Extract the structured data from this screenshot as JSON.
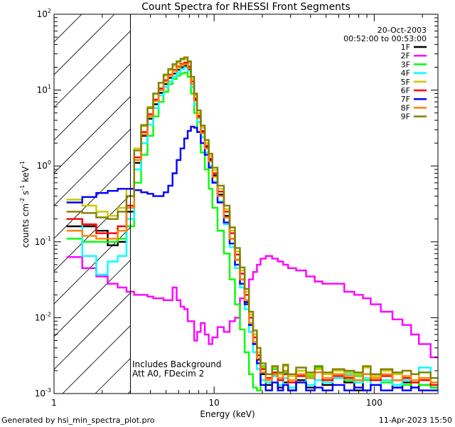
{
  "chart_data": {
    "type": "line",
    "title": "Count Spectra for RHESSI Front Segments",
    "xlabel": "Energy (keV)",
    "ylabel_parts": [
      "counts cm",
      "-2",
      " s",
      "-1",
      " keV",
      "-1"
    ],
    "x_scale": "log",
    "y_scale": "log",
    "xlim": [
      1,
      250
    ],
    "ylim": [
      0.001,
      100
    ],
    "x_ticks": [
      {
        "v": 1,
        "label": "1"
      },
      {
        "v": 10,
        "label": "10"
      },
      {
        "v": 100,
        "label": "100"
      }
    ],
    "y_ticks": [
      {
        "v": 0.001,
        "m": "10",
        "e": "-3"
      },
      {
        "v": 0.01,
        "m": "10",
        "e": "-2"
      },
      {
        "v": 0.1,
        "m": "10",
        "e": "-1"
      },
      {
        "v": 1,
        "m": "10",
        "e": "0"
      },
      {
        "v": 10,
        "m": "10",
        "e": "1"
      },
      {
        "v": 100,
        "m": "10",
        "e": "2"
      }
    ],
    "hatched_region_keV": [
      1,
      3
    ],
    "date": "20-Oct-2003",
    "time_range": "00:52:00 to 00:53:00",
    "annotations": [
      "Includes Background",
      "Att A0, FDecim 2"
    ],
    "energy_bins_keV": [
      1.33,
      1.67,
      2.0,
      2.33,
      2.67,
      3.0,
      3.33,
      3.67,
      4.0,
      4.33,
      4.67,
      5.0,
      5.33,
      5.67,
      6.0,
      6.33,
      6.67,
      7.0,
      7.33,
      7.67,
      8.0,
      8.5,
      9.0,
      9.5,
      10,
      11,
      12,
      13,
      14,
      15,
      16,
      17,
      18,
      19,
      20,
      22,
      24,
      26,
      28,
      30,
      35,
      40,
      45,
      50,
      60,
      70,
      80,
      90,
      100,
      120,
      140,
      160,
      180,
      200,
      250
    ],
    "series": [
      {
        "name": "1F",
        "color": "#000000",
        "values": [
          0.16,
          0.16,
          0.14,
          0.09,
          0.1,
          0.25,
          1.1,
          2.5,
          4.2,
          6.5,
          9.2,
          12,
          14.5,
          16.5,
          18.5,
          20,
          21,
          19,
          12,
          7.5,
          4.5,
          2.8,
          1.8,
          1.2,
          0.75,
          0.42,
          0.22,
          0.11,
          0.058,
          0.032,
          0.016,
          0.008,
          0.0045,
          0.0028,
          0.0018,
          0.0013,
          0.0017,
          0.0012,
          0.0014,
          0.0011,
          0.0015,
          0.0012,
          0.0019,
          0.0013,
          0.0016,
          0.0014,
          0.0011,
          0.0018,
          0.0013,
          0.0015,
          0.0012,
          0.0014,
          0.0012,
          0.0013,
          0.0012
        ]
      },
      {
        "name": "2F",
        "color": "#ff00ff",
        "values": [
          0.063,
          0.045,
          0.035,
          0.028,
          0.025,
          0.022,
          0.02,
          0.02,
          0.019,
          0.018,
          0.018,
          0.017,
          0.017,
          0.025,
          0.017,
          0.014,
          0.013,
          0.009,
          0.009,
          0.005,
          0.0065,
          0.0085,
          0.006,
          0.0045,
          0.0055,
          0.0075,
          0.0065,
          0.009,
          0.01,
          0.018,
          0.024,
          0.032,
          0.04,
          0.05,
          0.06,
          0.065,
          0.06,
          0.055,
          0.05,
          0.045,
          0.042,
          0.035,
          0.03,
          0.028,
          0.028,
          0.022,
          0.02,
          0.018,
          0.015,
          0.012,
          0.0095,
          0.008,
          0.006,
          0.0045,
          0.003
        ]
      },
      {
        "name": "3F",
        "color": "#00ff00",
        "values": [
          0.11,
          0.1,
          0.1,
          0.1,
          0.11,
          0.16,
          0.6,
          1.4,
          2.5,
          4.5,
          7,
          9.5,
          12,
          14,
          15.5,
          16.5,
          17,
          15,
          9,
          5,
          2.8,
          1.5,
          0.9,
          0.5,
          0.28,
          0.14,
          0.07,
          0.032,
          0.015,
          0.007,
          0.0035,
          0.0018,
          0.0012,
          0.0011,
          0.0023,
          0.0018,
          0.0021,
          0.0016,
          0.0019,
          0.0015,
          0.002,
          0.0017,
          0.0022,
          0.0016,
          0.0018,
          0.0015,
          0.0017,
          0.0015,
          0.0016,
          0.0014,
          0.0015,
          0.0013,
          0.0014,
          0.0013,
          0.0012
        ]
      },
      {
        "name": "4F",
        "color": "#00ffff",
        "values": [
          0.2,
          0.065,
          0.037,
          0.055,
          0.065,
          0.2,
          0.9,
          2.0,
          3.5,
          5.8,
          8.5,
          11,
          13,
          15,
          17,
          19,
          20,
          18,
          11,
          6.5,
          3.8,
          2.4,
          1.5,
          1.0,
          0.62,
          0.34,
          0.17,
          0.085,
          0.045,
          0.025,
          0.013,
          0.0065,
          0.0035,
          0.0021,
          0.0015,
          0.0014,
          0.0017,
          0.0013,
          0.0016,
          0.0012,
          0.0017,
          0.0013,
          0.0015,
          0.0014,
          0.0016,
          0.0018,
          0.0014,
          0.0016,
          0.0013,
          0.0015,
          0.0013,
          0.0015,
          0.0014,
          0.0022,
          0.0014
        ]
      },
      {
        "name": "5F",
        "color": "#c8c800",
        "values": [
          0.36,
          0.3,
          0.25,
          0.22,
          0.28,
          0.5,
          1.7,
          3.5,
          6,
          9,
          12.5,
          15.5,
          18.5,
          21,
          23,
          25,
          25.5,
          23,
          14,
          8.5,
          5.0,
          3.2,
          2.0,
          1.35,
          0.88,
          0.5,
          0.27,
          0.14,
          0.075,
          0.042,
          0.022,
          0.011,
          0.006,
          0.0035,
          0.0022,
          0.0016,
          0.0022,
          0.0018,
          0.0023,
          0.0017,
          0.002,
          0.0018,
          0.0021,
          0.0018,
          0.002,
          0.0019,
          0.0018,
          0.0022,
          0.0017,
          0.002,
          0.0018,
          0.002,
          0.0018,
          0.0016,
          0.0014
        ]
      },
      {
        "name": "6F",
        "color": "#ff0000",
        "values": [
          0.2,
          0.17,
          0.13,
          0.13,
          0.16,
          0.3,
          1.3,
          2.8,
          4.8,
          7.5,
          10.5,
          13.5,
          16,
          18.5,
          20.5,
          22,
          23,
          20.5,
          13,
          7.8,
          4.6,
          2.9,
          1.85,
          1.25,
          0.8,
          0.46,
          0.25,
          0.13,
          0.068,
          0.038,
          0.02,
          0.01,
          0.0055,
          0.0032,
          0.0021,
          0.0016,
          0.0019,
          0.0015,
          0.0018,
          0.0014,
          0.0017,
          0.0016,
          0.0019,
          0.0015,
          0.0017,
          0.0016,
          0.0015,
          0.0018,
          0.0015,
          0.0017,
          0.0015,
          0.0016,
          0.0014,
          0.0015,
          0.0013
        ]
      },
      {
        "name": "7F",
        "color": "#0000ff",
        "values": [
          0.33,
          0.39,
          0.44,
          0.47,
          0.5,
          0.5,
          0.48,
          0.45,
          0.43,
          0.4,
          0.4,
          0.45,
          0.55,
          0.8,
          1.2,
          1.7,
          2.3,
          2.9,
          3.3,
          3.2,
          2.8,
          2.0,
          1.4,
          0.95,
          0.6,
          0.33,
          0.18,
          0.095,
          0.05,
          0.028,
          0.015,
          0.008,
          0.0045,
          0.0025,
          0.0013,
          0.0011,
          0.0014,
          0.0011,
          0.0013,
          0.0011,
          0.0014,
          0.0011,
          0.0012,
          0.0011,
          0.0013,
          0.0011,
          0.0012,
          0.0011,
          0.0013,
          0.0011,
          0.0012,
          0.0011,
          0.0012,
          0.0011,
          0.0011
        ]
      },
      {
        "name": "8F",
        "color": "#ff8000",
        "values": [
          0.14,
          0.12,
          0.11,
          0.11,
          0.14,
          0.28,
          1.2,
          2.6,
          4.5,
          7.2,
          10,
          13,
          15.5,
          18,
          20,
          21.5,
          22,
          19.5,
          12,
          7.2,
          4.3,
          2.7,
          1.7,
          1.15,
          0.72,
          0.4,
          0.21,
          0.11,
          0.058,
          0.032,
          0.017,
          0.0085,
          0.0048,
          0.0029,
          0.0019,
          0.0015,
          0.0018,
          0.0016,
          0.002,
          0.0015,
          0.0018,
          0.0016,
          0.0019,
          0.0016,
          0.0018,
          0.0017,
          0.0015,
          0.0018,
          0.0016,
          0.0018,
          0.0015,
          0.0017,
          0.0015,
          0.0016,
          0.0014
        ]
      },
      {
        "name": "9F",
        "color": "#808000",
        "values": [
          0.25,
          0.24,
          0.21,
          0.2,
          0.25,
          0.4,
          1.6,
          3.4,
          5.8,
          9,
          12.5,
          16,
          19,
          22,
          24,
          26,
          27,
          24,
          15,
          9,
          5.4,
          3.4,
          2.2,
          1.45,
          0.95,
          0.55,
          0.3,
          0.155,
          0.083,
          0.046,
          0.024,
          0.012,
          0.0068,
          0.004,
          0.0025,
          0.0018,
          0.0023,
          0.0019,
          0.0024,
          0.0018,
          0.0022,
          0.0019,
          0.0023,
          0.0019,
          0.0021,
          0.002,
          0.0019,
          0.0023,
          0.0018,
          0.0021,
          0.0019,
          0.002,
          0.0018,
          0.0019,
          0.0016
        ]
      }
    ]
  },
  "footer": {
    "left": "Generated by hsi_min_spectra_plot.pro",
    "right": "11-Apr-2023 15:50"
  }
}
